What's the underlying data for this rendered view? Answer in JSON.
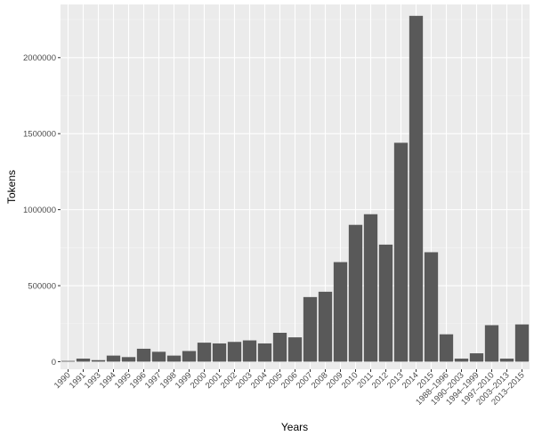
{
  "chart_data": {
    "type": "bar",
    "title": "",
    "xlabel": "Years",
    "ylabel": "Tokens",
    "ylim": [
      -50000,
      2350000
    ],
    "yticks": [
      0,
      500000,
      1000000,
      1500000,
      2000000
    ],
    "ytick_labels": [
      "0",
      "500000",
      "1000000",
      "1500000",
      "2000000"
    ],
    "grid": true,
    "legend": "none",
    "categories": [
      "1990",
      "1991",
      "1993",
      "1994",
      "1995",
      "1996",
      "1997",
      "1998",
      "1999",
      "2000",
      "2001",
      "2002",
      "2003",
      "2004",
      "2005",
      "2006",
      "2007",
      "2008",
      "2009",
      "2010",
      "2011",
      "2012",
      "2013",
      "2014",
      "2015",
      "1988–1996",
      "1990–2003",
      "1994–1999",
      "1997–2010",
      "2003–2013",
      "2013–2015"
    ],
    "values": [
      5000,
      20000,
      10000,
      40000,
      30000,
      85000,
      65000,
      40000,
      70000,
      125000,
      120000,
      130000,
      140000,
      120000,
      190000,
      160000,
      425000,
      460000,
      655000,
      900000,
      970000,
      770000,
      1440000,
      2275000,
      720000,
      180000,
      20000,
      55000,
      240000,
      20000,
      245000
    ],
    "colors": {
      "panel_background": "#ebebeb",
      "grid_major": "#ffffff",
      "grid_minor": "#f5f5f5",
      "bar_fill": "#595959",
      "tick_text": "#4d4d4d",
      "axis_title": "#000000"
    }
  }
}
